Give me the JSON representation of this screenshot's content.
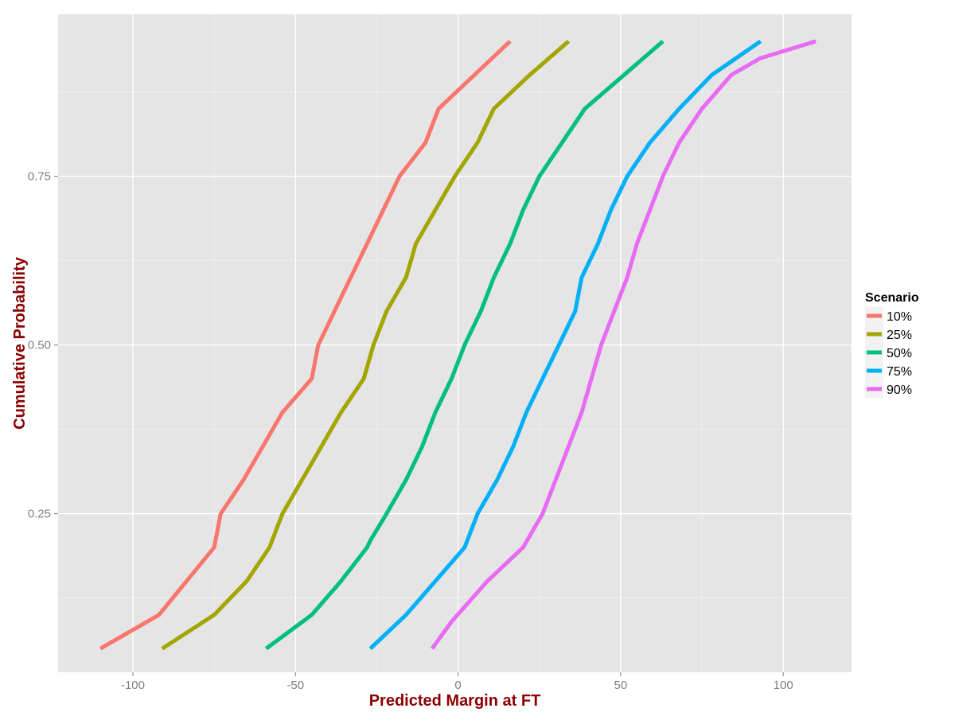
{
  "chart_data": {
    "type": "line",
    "title": "",
    "xlabel": "Predicted Margin at FT",
    "ylabel": "Cumulative Probability",
    "xlim": [
      -123,
      121
    ],
    "ylim": [
      0.015,
      0.99
    ],
    "x_ticks": [
      -100,
      -50,
      0,
      50,
      100
    ],
    "x_tick_labels": [
      "-100",
      "-50",
      "0",
      "50",
      "100"
    ],
    "y_ticks": [
      0.25,
      0.5,
      0.75
    ],
    "y_tick_labels": [
      "0.25",
      "0.50",
      "0.75"
    ],
    "grid": true,
    "legend": {
      "title": "Scenario",
      "position": "right"
    },
    "series": [
      {
        "name": "10%",
        "color": "#F8766D",
        "x": [
          -110,
          -92,
          -75,
          -73,
          -66,
          -60,
          -54,
          -45,
          -43,
          -41,
          -38,
          -33,
          -28,
          -23,
          -18,
          -10,
          -6,
          5,
          16
        ],
        "y": [
          0.05,
          0.1,
          0.2,
          0.25,
          0.3,
          0.35,
          0.4,
          0.45,
          0.5,
          0.52,
          0.55,
          0.6,
          0.65,
          0.7,
          0.75,
          0.8,
          0.85,
          0.9,
          0.95
        ]
      },
      {
        "name": "25%",
        "color": "#A3A500",
        "x": [
          -91,
          -75,
          -65,
          -58,
          -54,
          -48,
          -42,
          -36,
          -29,
          -26,
          -22,
          -16,
          -13,
          -7,
          -1,
          6,
          11,
          22,
          34
        ],
        "y": [
          0.05,
          0.1,
          0.15,
          0.2,
          0.25,
          0.3,
          0.35,
          0.4,
          0.45,
          0.5,
          0.55,
          0.6,
          0.65,
          0.7,
          0.75,
          0.8,
          0.85,
          0.9,
          0.95
        ]
      },
      {
        "name": "50%",
        "color": "#00BF7D",
        "x": [
          -59,
          -45,
          -36,
          -28,
          -27,
          -22,
          -16,
          -11,
          -7,
          -2,
          2,
          7,
          11,
          16,
          20,
          25,
          32,
          39,
          51,
          63
        ],
        "y": [
          0.05,
          0.1,
          0.15,
          0.2,
          0.21,
          0.25,
          0.3,
          0.35,
          0.4,
          0.45,
          0.5,
          0.55,
          0.6,
          0.65,
          0.7,
          0.75,
          0.8,
          0.85,
          0.9,
          0.95
        ]
      },
      {
        "name": "75%",
        "color": "#00B0F6",
        "x": [
          -27,
          -16,
          2,
          6,
          12,
          17,
          21,
          26,
          31,
          36,
          38,
          43,
          47,
          52,
          59,
          68,
          78,
          93
        ],
        "y": [
          0.05,
          0.1,
          0.2,
          0.25,
          0.3,
          0.35,
          0.4,
          0.45,
          0.5,
          0.55,
          0.6,
          0.65,
          0.7,
          0.75,
          0.8,
          0.85,
          0.9,
          0.95
        ]
      },
      {
        "name": "90%",
        "color": "#E76BF3",
        "x": [
          -8,
          -2,
          9,
          20,
          26,
          30,
          34,
          38,
          41,
          44,
          48,
          52,
          55,
          59,
          63,
          68,
          75,
          84,
          93,
          110
        ],
        "y": [
          0.05,
          0.09,
          0.15,
          0.2,
          0.25,
          0.3,
          0.35,
          0.4,
          0.45,
          0.5,
          0.55,
          0.6,
          0.65,
          0.7,
          0.75,
          0.8,
          0.85,
          0.9,
          0.925,
          0.95
        ]
      }
    ]
  }
}
